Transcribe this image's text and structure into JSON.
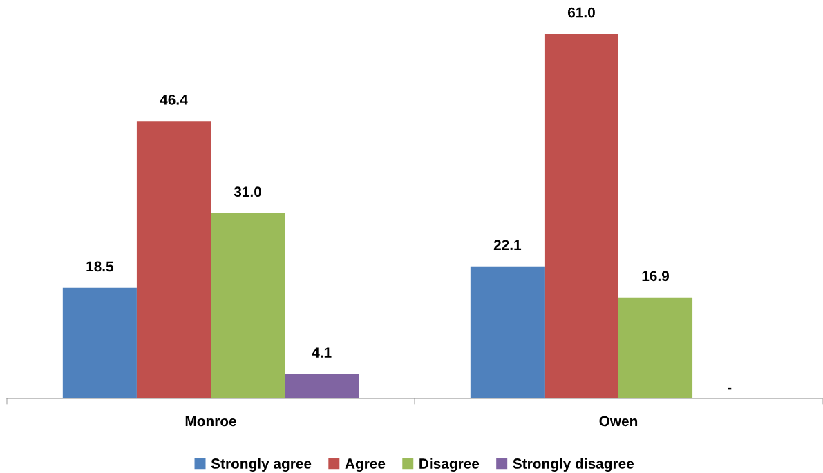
{
  "chart_data": {
    "type": "bar",
    "categories": [
      "Monroe",
      "Owen"
    ],
    "legend": "bottom",
    "grid": false,
    "series": [
      {
        "name": "Strongly agree",
        "color": "#4f81bd",
        "values": [
          18.5,
          22.1
        ],
        "value_labels": [
          "18.5",
          "22.1"
        ]
      },
      {
        "name": "Agree",
        "color": "#c0504d",
        "values": [
          46.4,
          61.0
        ],
        "value_labels": [
          "46.4",
          "61.0"
        ]
      },
      {
        "name": "Disagree",
        "color": "#9bbb59",
        "values": [
          31.0,
          16.9
        ],
        "value_labels": [
          "31.0",
          "16.9"
        ]
      },
      {
        "name": "Strongly disagree",
        "color": "#8064a2",
        "values": [
          4.1,
          null
        ],
        "value_labels": [
          "4.1",
          "-"
        ]
      }
    ]
  }
}
